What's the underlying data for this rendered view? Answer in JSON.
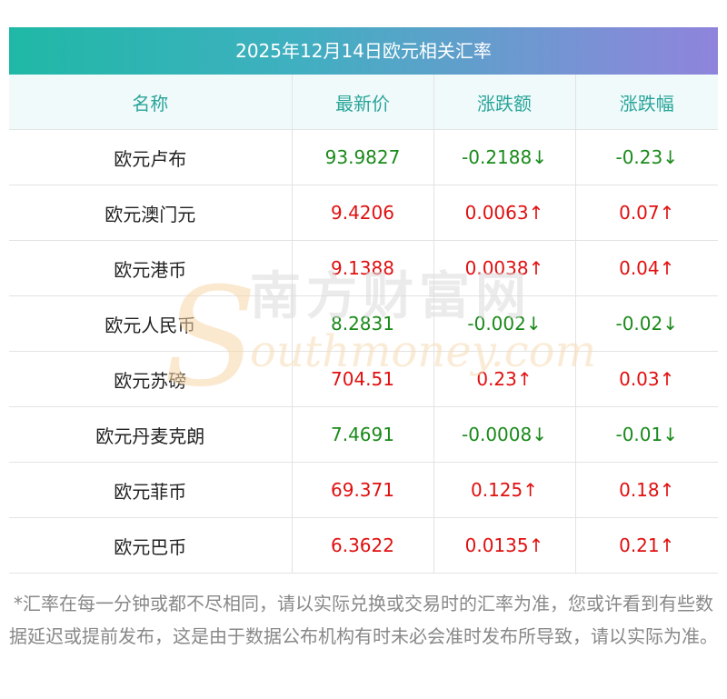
{
  "title": "2025年12月14日欧元相关汇率",
  "headers": [
    "名称",
    "最新价",
    "涨跌额",
    "涨跌幅"
  ],
  "rows": [
    {
      "name": "欧元卢布",
      "price": "93.9827",
      "change": "-0.2188↓",
      "pct": "-0.23↓",
      "dir": "down"
    },
    {
      "name": "欧元澳门元",
      "price": "9.4206",
      "change": "0.0063↑",
      "pct": "0.07↑",
      "dir": "up"
    },
    {
      "name": "欧元港币",
      "price": "9.1388",
      "change": "0.0038↑",
      "pct": "0.04↑",
      "dir": "up"
    },
    {
      "name": "欧元人民币",
      "price": "8.2831",
      "change": "-0.002↓",
      "pct": "-0.02↓",
      "dir": "down"
    },
    {
      "name": "欧元苏磅",
      "price": "704.51",
      "change": "0.23↑",
      "pct": "0.03↑",
      "dir": "up"
    },
    {
      "name": "欧元丹麦克朗",
      "price": "7.4691",
      "change": "-0.0008↓",
      "pct": "-0.01↓",
      "dir": "down"
    },
    {
      "name": "欧元菲币",
      "price": "69.371",
      "change": "0.125↑",
      "pct": "0.18↑",
      "dir": "up"
    },
    {
      "name": "欧元巴币",
      "price": "6.3622",
      "change": "0.0135↑",
      "pct": "0.21↑",
      "dir": "up"
    }
  ],
  "watermark": {
    "cn": "南方财富网",
    "en": "outhmoney.com",
    "initial": "S"
  },
  "footnote": "*汇率在每一分钟或都不尽相同，请以实际兑换或交易时的汇率为准，您或许看到有些数据延迟或提前发布，这是由于数据公布机构有时未必会准时发布所导致，请以实际为准。",
  "colors": {
    "up": "#e01010",
    "down": "#1a8a1a",
    "header_text": "#2aa59a",
    "gradient_start": "#1fb8a6",
    "gradient_end": "#8f84dc"
  }
}
